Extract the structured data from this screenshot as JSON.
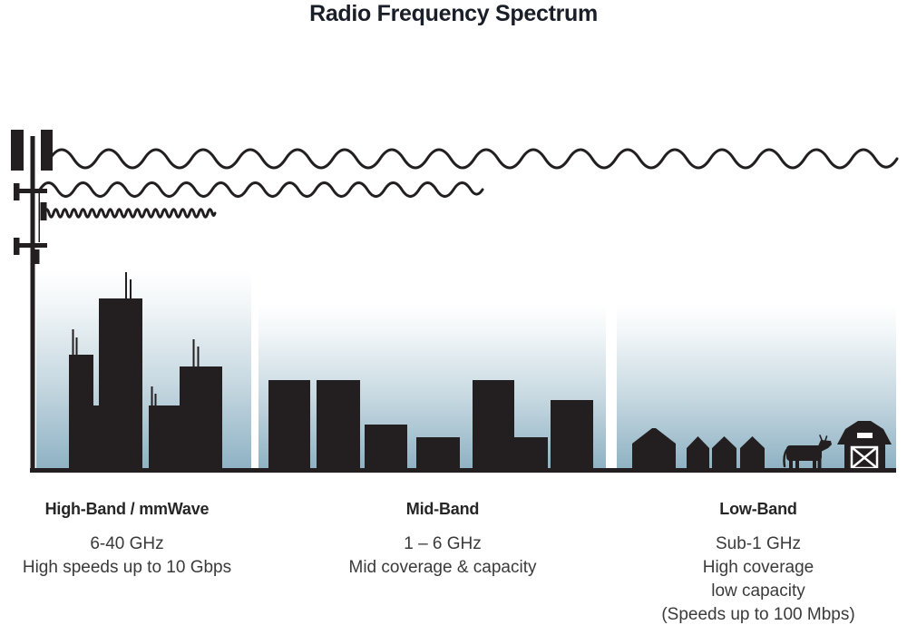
{
  "title": "Radio Frequency Spectrum",
  "colors": {
    "ink": "#231f20",
    "sky_mid": "#c9dae2",
    "sky_bottom": "#8fb2c4",
    "title": "#1a1e28",
    "heading": "#262626",
    "text": "#3a3a3a"
  },
  "scene": {
    "transmitter": "cell-tower",
    "waves": [
      {
        "name": "long-radio-wave",
        "reaches": "low-band area"
      },
      {
        "name": "medium-radio-wave",
        "reaches": "mid-band area"
      },
      {
        "name": "short-radio-wave",
        "reaches": "high-band area"
      }
    ],
    "areas": [
      "city skyline",
      "mid-rise buildings",
      "houses, cow and barn"
    ]
  },
  "bands": [
    {
      "name": "High-Band / mmWave",
      "details": [
        "6-40 GHz",
        "High speeds up to 10 Gbps"
      ]
    },
    {
      "name": "Mid-Band",
      "details": [
        "1 – 6 GHz",
        "Mid coverage & capacity"
      ]
    },
    {
      "name": "Low-Band",
      "details": [
        "Sub-1 GHz",
        "High coverage",
        "low capacity",
        "(Speeds up to 100 Mbps)"
      ]
    }
  ]
}
